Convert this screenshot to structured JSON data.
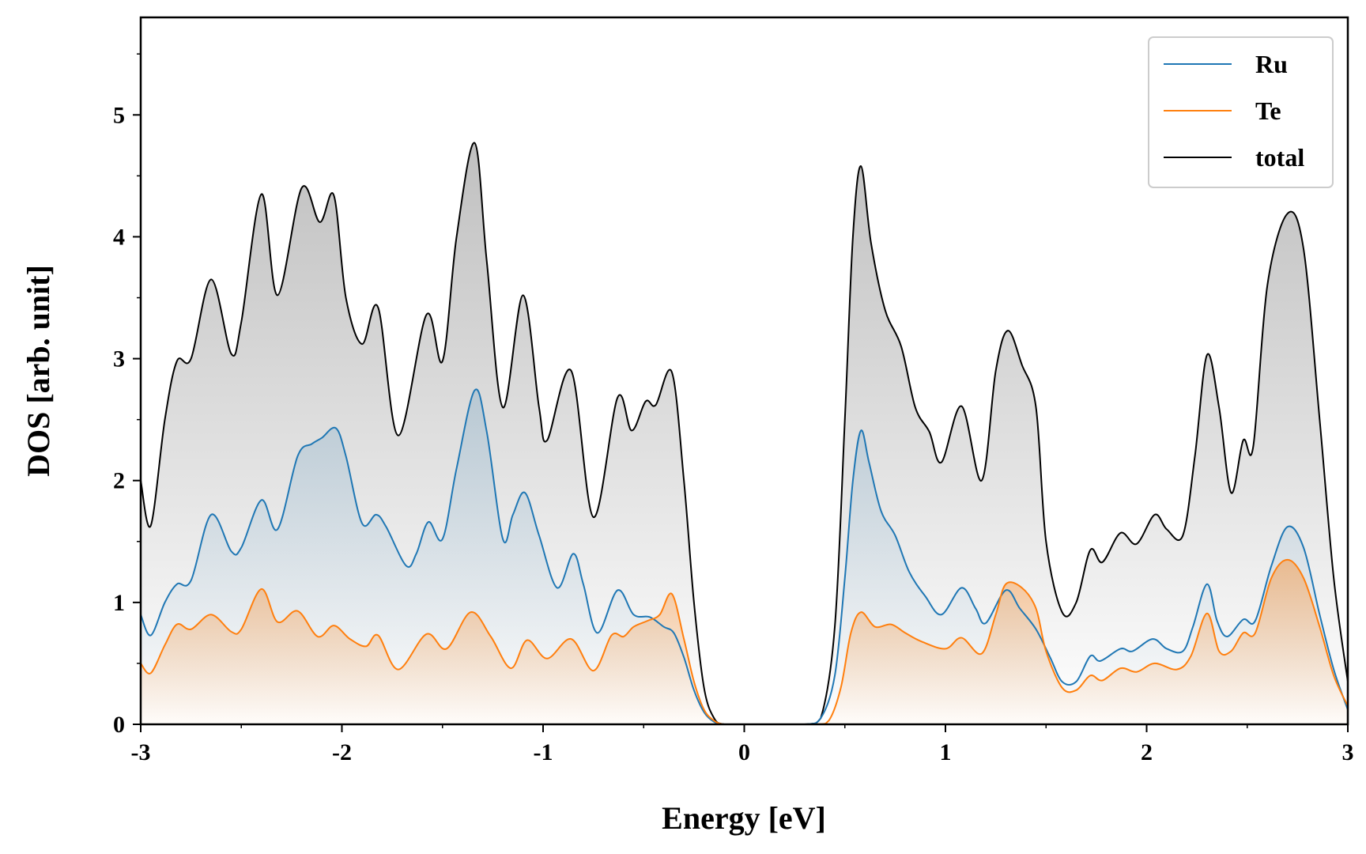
{
  "chart_data": {
    "type": "area",
    "title": "",
    "xlabel": "Energy [eV]",
    "ylabel": "DOS [arb. unit]",
    "xlim": [
      -3,
      3
    ],
    "ylim": [
      0,
      5.8
    ],
    "xticks": [
      -3,
      -2,
      -1,
      0,
      1,
      2,
      3
    ],
    "xtick_labels": [
      "-3",
      "-2",
      "-1",
      "0",
      "1",
      "2",
      "3"
    ],
    "yticks": [
      0,
      1,
      2,
      3,
      4,
      5
    ],
    "ytick_labels": [
      "0",
      "1",
      "2",
      "3",
      "4",
      "5"
    ],
    "x_minor_step": 0.5,
    "y_minor_step": 0.5,
    "grid": false,
    "legend_position": "top-right",
    "series": [
      {
        "name": "Ru",
        "color": "#1f77b4",
        "points": [
          [
            -3.0,
            0.9
          ],
          [
            -2.95,
            0.73
          ],
          [
            -2.88,
            1.0
          ],
          [
            -2.82,
            1.15
          ],
          [
            -2.75,
            1.18
          ],
          [
            -2.65,
            1.72
          ],
          [
            -2.55,
            1.42
          ],
          [
            -2.5,
            1.45
          ],
          [
            -2.4,
            1.84
          ],
          [
            -2.32,
            1.6
          ],
          [
            -2.22,
            2.2
          ],
          [
            -2.15,
            2.3
          ],
          [
            -2.1,
            2.35
          ],
          [
            -2.03,
            2.43
          ],
          [
            -1.98,
            2.2
          ],
          [
            -1.9,
            1.65
          ],
          [
            -1.83,
            1.72
          ],
          [
            -1.78,
            1.62
          ],
          [
            -1.68,
            1.3
          ],
          [
            -1.63,
            1.4
          ],
          [
            -1.57,
            1.66
          ],
          [
            -1.5,
            1.52
          ],
          [
            -1.43,
            2.1
          ],
          [
            -1.34,
            2.74
          ],
          [
            -1.28,
            2.4
          ],
          [
            -1.2,
            1.52
          ],
          [
            -1.15,
            1.72
          ],
          [
            -1.09,
            1.9
          ],
          [
            -1.02,
            1.55
          ],
          [
            -0.93,
            1.12
          ],
          [
            -0.85,
            1.4
          ],
          [
            -0.8,
            1.15
          ],
          [
            -0.73,
            0.75
          ],
          [
            -0.63,
            1.1
          ],
          [
            -0.55,
            0.9
          ],
          [
            -0.47,
            0.88
          ],
          [
            -0.4,
            0.8
          ],
          [
            -0.35,
            0.75
          ],
          [
            -0.3,
            0.55
          ],
          [
            -0.25,
            0.28
          ],
          [
            -0.2,
            0.1
          ],
          [
            -0.15,
            0.02
          ],
          [
            -0.1,
            0.0
          ],
          [
            0.0,
            0.0
          ],
          [
            0.3,
            0.0
          ],
          [
            0.38,
            0.05
          ],
          [
            0.45,
            0.4
          ],
          [
            0.5,
            1.2
          ],
          [
            0.54,
            2.0
          ],
          [
            0.58,
            2.41
          ],
          [
            0.62,
            2.15
          ],
          [
            0.68,
            1.75
          ],
          [
            0.75,
            1.55
          ],
          [
            0.82,
            1.25
          ],
          [
            0.9,
            1.05
          ],
          [
            0.98,
            0.9
          ],
          [
            1.08,
            1.12
          ],
          [
            1.15,
            0.95
          ],
          [
            1.2,
            0.83
          ],
          [
            1.3,
            1.1
          ],
          [
            1.37,
            0.95
          ],
          [
            1.45,
            0.78
          ],
          [
            1.52,
            0.55
          ],
          [
            1.58,
            0.35
          ],
          [
            1.65,
            0.35
          ],
          [
            1.72,
            0.56
          ],
          [
            1.77,
            0.52
          ],
          [
            1.87,
            0.62
          ],
          [
            1.93,
            0.6
          ],
          [
            2.03,
            0.7
          ],
          [
            2.1,
            0.62
          ],
          [
            2.18,
            0.6
          ],
          [
            2.23,
            0.8
          ],
          [
            2.3,
            1.15
          ],
          [
            2.35,
            0.85
          ],
          [
            2.4,
            0.72
          ],
          [
            2.48,
            0.86
          ],
          [
            2.54,
            0.85
          ],
          [
            2.62,
            1.3
          ],
          [
            2.7,
            1.62
          ],
          [
            2.78,
            1.45
          ],
          [
            2.86,
            0.9
          ],
          [
            2.93,
            0.45
          ],
          [
            3.0,
            0.12
          ]
        ]
      },
      {
        "name": "Te",
        "color": "#ff7f0e",
        "points": [
          [
            -3.0,
            0.5
          ],
          [
            -2.95,
            0.42
          ],
          [
            -2.88,
            0.65
          ],
          [
            -2.82,
            0.82
          ],
          [
            -2.75,
            0.78
          ],
          [
            -2.65,
            0.9
          ],
          [
            -2.55,
            0.76
          ],
          [
            -2.5,
            0.78
          ],
          [
            -2.4,
            1.11
          ],
          [
            -2.32,
            0.84
          ],
          [
            -2.22,
            0.93
          ],
          [
            -2.12,
            0.72
          ],
          [
            -2.04,
            0.81
          ],
          [
            -1.96,
            0.7
          ],
          [
            -1.88,
            0.64
          ],
          [
            -1.82,
            0.73
          ],
          [
            -1.72,
            0.45
          ],
          [
            -1.58,
            0.74
          ],
          [
            -1.48,
            0.62
          ],
          [
            -1.36,
            0.92
          ],
          [
            -1.26,
            0.72
          ],
          [
            -1.16,
            0.46
          ],
          [
            -1.08,
            0.69
          ],
          [
            -0.98,
            0.54
          ],
          [
            -0.86,
            0.7
          ],
          [
            -0.75,
            0.44
          ],
          [
            -0.66,
            0.73
          ],
          [
            -0.6,
            0.72
          ],
          [
            -0.55,
            0.8
          ],
          [
            -0.48,
            0.85
          ],
          [
            -0.42,
            0.9
          ],
          [
            -0.36,
            1.07
          ],
          [
            -0.3,
            0.7
          ],
          [
            -0.25,
            0.35
          ],
          [
            -0.2,
            0.12
          ],
          [
            -0.15,
            0.03
          ],
          [
            -0.1,
            0.0
          ],
          [
            0.0,
            0.0
          ],
          [
            0.35,
            0.0
          ],
          [
            0.42,
            0.03
          ],
          [
            0.48,
            0.3
          ],
          [
            0.53,
            0.75
          ],
          [
            0.58,
            0.92
          ],
          [
            0.65,
            0.8
          ],
          [
            0.73,
            0.82
          ],
          [
            0.8,
            0.75
          ],
          [
            0.88,
            0.68
          ],
          [
            1.0,
            0.62
          ],
          [
            1.08,
            0.71
          ],
          [
            1.18,
            0.58
          ],
          [
            1.25,
            0.9
          ],
          [
            1.3,
            1.15
          ],
          [
            1.38,
            1.12
          ],
          [
            1.45,
            0.95
          ],
          [
            1.5,
            0.6
          ],
          [
            1.58,
            0.3
          ],
          [
            1.65,
            0.28
          ],
          [
            1.72,
            0.4
          ],
          [
            1.78,
            0.36
          ],
          [
            1.87,
            0.46
          ],
          [
            1.95,
            0.43
          ],
          [
            2.04,
            0.5
          ],
          [
            2.15,
            0.45
          ],
          [
            2.22,
            0.56
          ],
          [
            2.3,
            0.91
          ],
          [
            2.36,
            0.6
          ],
          [
            2.42,
            0.6
          ],
          [
            2.48,
            0.75
          ],
          [
            2.54,
            0.75
          ],
          [
            2.62,
            1.2
          ],
          [
            2.7,
            1.35
          ],
          [
            2.78,
            1.2
          ],
          [
            2.86,
            0.8
          ],
          [
            2.93,
            0.4
          ],
          [
            3.0,
            0.15
          ]
        ]
      },
      {
        "name": "total",
        "color": "#000000",
        "points": [
          [
            -3.0,
            2.0
          ],
          [
            -2.95,
            1.63
          ],
          [
            -2.88,
            2.5
          ],
          [
            -2.82,
            2.98
          ],
          [
            -2.75,
            3.0
          ],
          [
            -2.65,
            3.65
          ],
          [
            -2.55,
            3.04
          ],
          [
            -2.5,
            3.3
          ],
          [
            -2.4,
            4.35
          ],
          [
            -2.32,
            3.52
          ],
          [
            -2.2,
            4.4
          ],
          [
            -2.11,
            4.12
          ],
          [
            -2.04,
            4.34
          ],
          [
            -1.98,
            3.5
          ],
          [
            -1.9,
            3.12
          ],
          [
            -1.82,
            3.42
          ],
          [
            -1.72,
            2.37
          ],
          [
            -1.58,
            3.36
          ],
          [
            -1.5,
            2.98
          ],
          [
            -1.43,
            4.0
          ],
          [
            -1.34,
            4.77
          ],
          [
            -1.28,
            3.8
          ],
          [
            -1.2,
            2.6
          ],
          [
            -1.1,
            3.52
          ],
          [
            -1.02,
            2.6
          ],
          [
            -0.98,
            2.33
          ],
          [
            -0.86,
            2.9
          ],
          [
            -0.75,
            1.7
          ],
          [
            -0.63,
            2.68
          ],
          [
            -0.56,
            2.41
          ],
          [
            -0.49,
            2.65
          ],
          [
            -0.44,
            2.62
          ],
          [
            -0.36,
            2.89
          ],
          [
            -0.3,
            2.0
          ],
          [
            -0.25,
            1.0
          ],
          [
            -0.2,
            0.3
          ],
          [
            -0.15,
            0.05
          ],
          [
            -0.1,
            0.0
          ],
          [
            0.0,
            0.0
          ],
          [
            0.3,
            0.0
          ],
          [
            0.38,
            0.05
          ],
          [
            0.45,
            0.8
          ],
          [
            0.5,
            2.5
          ],
          [
            0.54,
            4.0
          ],
          [
            0.58,
            4.58
          ],
          [
            0.63,
            3.95
          ],
          [
            0.7,
            3.4
          ],
          [
            0.78,
            3.1
          ],
          [
            0.85,
            2.6
          ],
          [
            0.92,
            2.4
          ],
          [
            0.98,
            2.15
          ],
          [
            1.08,
            2.61
          ],
          [
            1.18,
            2.0
          ],
          [
            1.25,
            2.9
          ],
          [
            1.31,
            3.23
          ],
          [
            1.38,
            2.95
          ],
          [
            1.45,
            2.6
          ],
          [
            1.5,
            1.5
          ],
          [
            1.58,
            0.92
          ],
          [
            1.65,
            1.0
          ],
          [
            1.72,
            1.43
          ],
          [
            1.78,
            1.33
          ],
          [
            1.87,
            1.57
          ],
          [
            1.95,
            1.48
          ],
          [
            2.04,
            1.72
          ],
          [
            2.1,
            1.6
          ],
          [
            2.18,
            1.55
          ],
          [
            2.24,
            2.2
          ],
          [
            2.3,
            3.03
          ],
          [
            2.36,
            2.6
          ],
          [
            2.42,
            1.9
          ],
          [
            2.48,
            2.33
          ],
          [
            2.53,
            2.28
          ],
          [
            2.6,
            3.6
          ],
          [
            2.7,
            4.19
          ],
          [
            2.78,
            3.9
          ],
          [
            2.86,
            2.5
          ],
          [
            2.93,
            1.2
          ],
          [
            3.0,
            0.35
          ]
        ]
      }
    ]
  }
}
